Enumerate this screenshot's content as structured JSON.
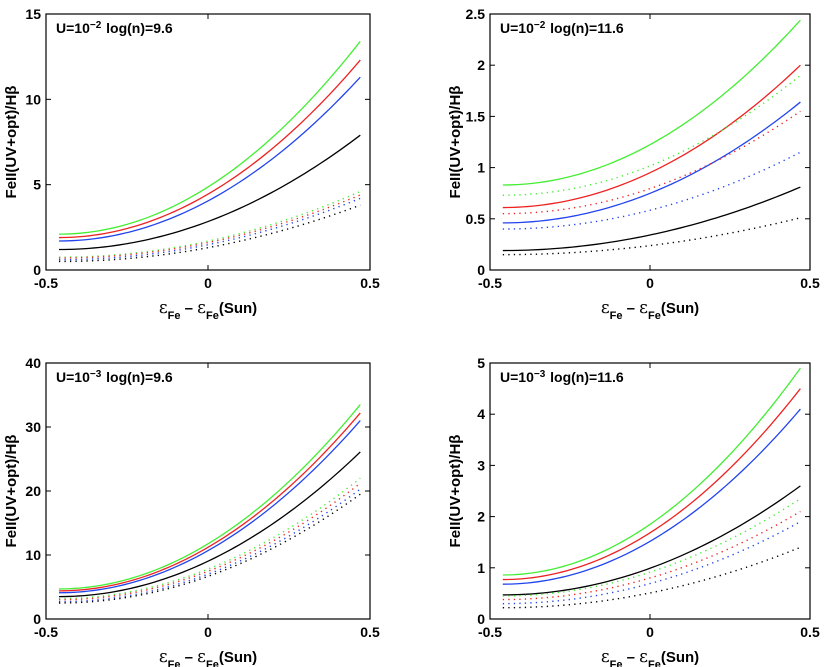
{
  "chart_data": [
    {
      "type": "line",
      "title_parts": {
        "pre": "U=10",
        "exp": "−2",
        "post": " log(n)=9.6"
      },
      "title": "U=10^-2 log(n)=9.6",
      "ylabel": "FeII(UV+opt)/Hβ",
      "xlabel_parts": {
        "eps": "ε",
        "sub": "Fe",
        "mid": " – ",
        "eps2": "ε",
        "sub2": "Fe",
        "tail": "(Sun)"
      },
      "xlim": [
        -0.5,
        0.5
      ],
      "ylim": [
        0,
        15
      ],
      "xticks": [
        "-0.5",
        "0",
        "0.5"
      ],
      "xtick_values": [
        -0.5,
        0,
        0.5
      ],
      "yticks": [
        "0",
        "5",
        "10",
        "15"
      ],
      "ytick_values": [
        0,
        5,
        10,
        15
      ],
      "series": [
        {
          "name": "green solid",
          "color": "#44ee33",
          "style": "solid",
          "y0": 2.1,
          "y1": 13.4
        },
        {
          "name": "red solid",
          "color": "#ee2222",
          "style": "solid",
          "y0": 1.9,
          "y1": 12.3
        },
        {
          "name": "blue solid",
          "color": "#2244ee",
          "style": "solid",
          "y0": 1.7,
          "y1": 11.3
        },
        {
          "name": "black solid",
          "color": "#000000",
          "style": "solid",
          "y0": 1.2,
          "y1": 7.9
        },
        {
          "name": "green dotted",
          "color": "#44ee33",
          "style": "dotted",
          "y0": 0.75,
          "y1": 4.6
        },
        {
          "name": "red dotted",
          "color": "#ee2222",
          "style": "dotted",
          "y0": 0.7,
          "y1": 4.4
        },
        {
          "name": "blue dotted",
          "color": "#2244ee",
          "style": "dotted",
          "y0": 0.6,
          "y1": 4.2
        },
        {
          "name": "black dotted",
          "color": "#000000",
          "style": "dotted",
          "y0": 0.5,
          "y1": 3.8
        }
      ]
    },
    {
      "type": "line",
      "title_parts": {
        "pre": "U=10",
        "exp": "−2",
        "post": " log(n)=11.6"
      },
      "title": "U=10^-2 log(n)=11.6",
      "ylabel": "FeII(UV+opt)/Hβ",
      "xlabel_parts": {
        "eps": "ε",
        "sub": "Fe",
        "mid": " – ",
        "eps2": "ε",
        "sub2": "Fe",
        "tail": "(Sun)"
      },
      "xlim": [
        -0.5,
        0.5
      ],
      "ylim": [
        0,
        2.5
      ],
      "xticks": [
        "-0.5",
        "0",
        "0.5"
      ],
      "xtick_values": [
        -0.5,
        0,
        0.5
      ],
      "yticks": [
        "0",
        "0.5",
        "1",
        "1.5",
        "2",
        "2.5"
      ],
      "ytick_values": [
        0,
        0.5,
        1,
        1.5,
        2,
        2.5
      ],
      "series": [
        {
          "name": "green solid",
          "color": "#44ee33",
          "style": "solid",
          "y0": 0.83,
          "y1": 2.44
        },
        {
          "name": "red solid",
          "color": "#ee2222",
          "style": "solid",
          "y0": 0.61,
          "y1": 2.0
        },
        {
          "name": "blue solid",
          "color": "#2244ee",
          "style": "solid",
          "y0": 0.46,
          "y1": 1.64
        },
        {
          "name": "black solid",
          "color": "#000000",
          "style": "solid",
          "y0": 0.19,
          "y1": 0.81
        },
        {
          "name": "green dotted",
          "color": "#44ee33",
          "style": "dotted",
          "y0": 0.73,
          "y1": 1.9
        },
        {
          "name": "red dotted",
          "color": "#ee2222",
          "style": "dotted",
          "y0": 0.55,
          "y1": 1.55
        },
        {
          "name": "blue dotted",
          "color": "#2244ee",
          "style": "dotted",
          "y0": 0.4,
          "y1": 1.15
        },
        {
          "name": "black dotted",
          "color": "#000000",
          "style": "dotted",
          "y0": 0.15,
          "y1": 0.51
        }
      ]
    },
    {
      "type": "line",
      "title_parts": {
        "pre": "U=10",
        "exp": "−3",
        "post": " log(n)=9.6"
      },
      "title": "U=10^-3 log(n)=9.6",
      "ylabel": "FeII(UV+opt)/Hβ",
      "xlabel_parts": {
        "eps": "ε",
        "sub": "Fe",
        "mid": " – ",
        "eps2": "ε",
        "sub2": "Fe",
        "tail": "(Sun)"
      },
      "xlim": [
        -0.5,
        0.5
      ],
      "ylim": [
        0,
        40
      ],
      "xticks": [
        "-0.5",
        "0",
        "0.5"
      ],
      "xtick_values": [
        -0.5,
        0,
        0.5
      ],
      "yticks": [
        "0",
        "10",
        "20",
        "30",
        "40"
      ],
      "ytick_values": [
        0,
        10,
        20,
        30,
        40
      ],
      "series": [
        {
          "name": "green solid",
          "color": "#44ee33",
          "style": "solid",
          "y0": 4.7,
          "y1": 33.5
        },
        {
          "name": "red solid",
          "color": "#ee2222",
          "style": "solid",
          "y0": 4.4,
          "y1": 32.2
        },
        {
          "name": "blue solid",
          "color": "#2244ee",
          "style": "solid",
          "y0": 4.1,
          "y1": 31.0
        },
        {
          "name": "black solid",
          "color": "#000000",
          "style": "solid",
          "y0": 3.5,
          "y1": 26.1
        },
        {
          "name": "green dotted",
          "color": "#44ee33",
          "style": "dotted",
          "y0": 3.2,
          "y1": 22.0
        },
        {
          "name": "red dotted",
          "color": "#ee2222",
          "style": "dotted",
          "y0": 3.0,
          "y1": 21.2
        },
        {
          "name": "blue dotted",
          "color": "#2244ee",
          "style": "dotted",
          "y0": 2.7,
          "y1": 20.3
        },
        {
          "name": "black dotted",
          "color": "#000000",
          "style": "dotted",
          "y0": 2.5,
          "y1": 19.5
        }
      ]
    },
    {
      "type": "line",
      "title_parts": {
        "pre": "U=10",
        "exp": "−3",
        "post": " log(n)=11.6"
      },
      "title": "U=10^-3 log(n)=11.6",
      "ylabel": "FeII(UV+opt)/Hβ",
      "xlabel_parts": {
        "eps": "ε",
        "sub": "Fe",
        "mid": " – ",
        "eps2": "ε",
        "sub2": "Fe",
        "tail": "(Sun)"
      },
      "xlim": [
        -0.5,
        0.5
      ],
      "ylim": [
        0,
        5
      ],
      "xticks": [
        "-0.5",
        "0",
        "0.5"
      ],
      "xtick_values": [
        -0.5,
        0,
        0.5
      ],
      "yticks": [
        "0",
        "1",
        "2",
        "3",
        "4",
        "5"
      ],
      "ytick_values": [
        0,
        1,
        2,
        3,
        4,
        5
      ],
      "series": [
        {
          "name": "green solid",
          "color": "#44ee33",
          "style": "solid",
          "y0": 0.86,
          "y1": 4.9
        },
        {
          "name": "red solid",
          "color": "#ee2222",
          "style": "solid",
          "y0": 0.77,
          "y1": 4.5
        },
        {
          "name": "blue solid",
          "color": "#2244ee",
          "style": "solid",
          "y0": 0.68,
          "y1": 4.1
        },
        {
          "name": "black solid",
          "color": "#000000",
          "style": "solid",
          "y0": 0.47,
          "y1": 2.6
        },
        {
          "name": "green dotted",
          "color": "#44ee33",
          "style": "dotted",
          "y0": 0.45,
          "y1": 2.35
        },
        {
          "name": "red dotted",
          "color": "#ee2222",
          "style": "dotted",
          "y0": 0.38,
          "y1": 2.1
        },
        {
          "name": "blue dotted",
          "color": "#2244ee",
          "style": "dotted",
          "y0": 0.3,
          "y1": 1.9
        },
        {
          "name": "black dotted",
          "color": "#000000",
          "style": "dotted",
          "y0": 0.22,
          "y1": 1.4
        }
      ]
    }
  ]
}
